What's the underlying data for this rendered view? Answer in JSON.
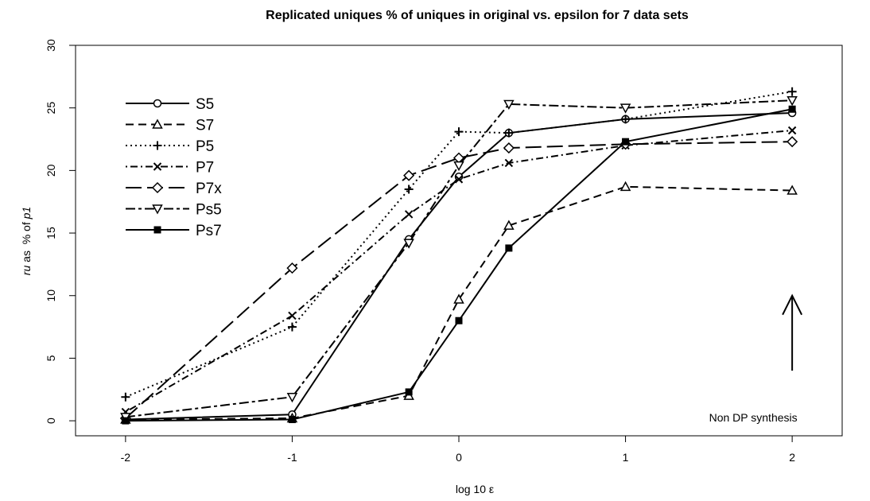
{
  "chart_data": {
    "type": "line",
    "title": "Replicated uniques % of uniques in original vs. epsilon for 7 data sets",
    "xlabel": "log 10 ε",
    "ylabel": {
      "part1": "ru",
      "part2": " as  % of ",
      "part3": "p1"
    },
    "xlim": [
      -2.3,
      2.3
    ],
    "ylim": [
      -1.2,
      30
    ],
    "x_ticks": [
      -2,
      -1,
      0,
      1,
      2
    ],
    "y_ticks": [
      0,
      5,
      10,
      15,
      20,
      25,
      30
    ],
    "x_tick_labels": [
      "-2",
      "-1",
      "0",
      "1",
      "2"
    ],
    "y_tick_labels": [
      "0",
      "5",
      "10",
      "15",
      "20",
      "25",
      "30"
    ],
    "x": [
      -2,
      -1,
      -0.3,
      0,
      0.3,
      1,
      2
    ],
    "legend_position": "top-left",
    "series": [
      {
        "name": "S5",
        "lty": "solid",
        "pch": "circle",
        "values": [
          0.1,
          0.5,
          14.5,
          19.5,
          23.0,
          24.1,
          24.6
        ]
      },
      {
        "name": "S7",
        "lty": "dashed",
        "pch": "triangle",
        "values": [
          0.1,
          0.2,
          2.0,
          9.7,
          15.6,
          18.7,
          18.4
        ]
      },
      {
        "name": "P5",
        "lty": "dotted",
        "pch": "plus",
        "values": [
          1.9,
          7.5,
          18.5,
          23.1,
          23.0,
          24.1,
          26.3
        ]
      },
      {
        "name": "P7",
        "lty": "dotdash",
        "pch": "cross",
        "values": [
          0.7,
          8.4,
          16.5,
          19.3,
          20.6,
          22.0,
          23.2
        ]
      },
      {
        "name": "P7x",
        "lty": "longdash",
        "pch": "diamond",
        "values": [
          0.2,
          12.2,
          19.6,
          21.0,
          21.8,
          22.1,
          22.3
        ]
      },
      {
        "name": "Ps5",
        "lty": "twodash",
        "pch": "itriangle",
        "values": [
          0.3,
          1.9,
          14.2,
          20.4,
          25.3,
          25.0,
          25.6
        ]
      },
      {
        "name": "Ps7",
        "lty": "solid",
        "pch": "square",
        "values": [
          0.0,
          0.1,
          2.3,
          8.0,
          13.8,
          22.3,
          24.9
        ]
      }
    ],
    "annotations": [
      {
        "text": "Non DP synthesis",
        "x": 2,
        "y": -1.2,
        "arrow_from": 4,
        "arrow_to": 10
      }
    ]
  }
}
